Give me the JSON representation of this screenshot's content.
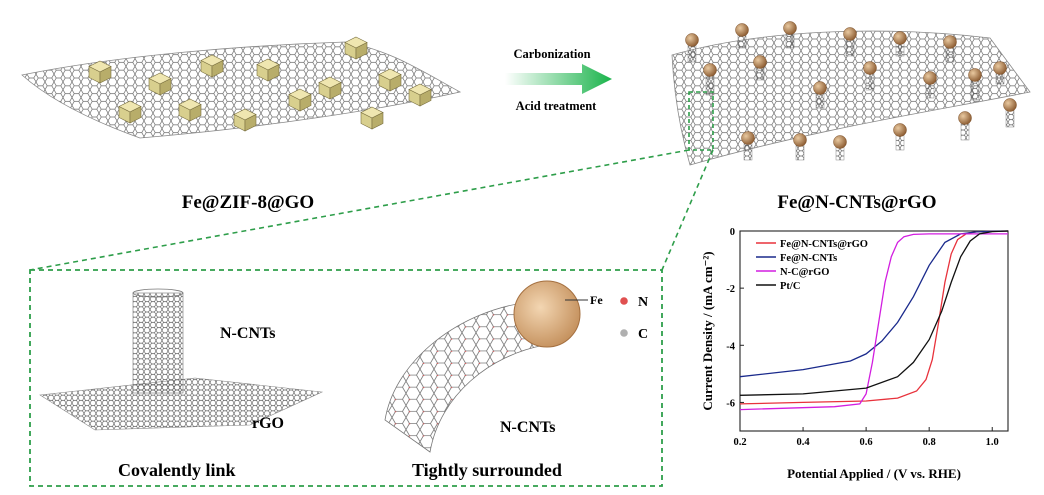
{
  "labels": {
    "precursor": "Fe@ZIF-8@GO",
    "product": "Fe@N-CNTs@rGO",
    "step1": "Carbonization",
    "step2": "Acid treatment",
    "cnt_vertical": "N-CNTs",
    "rgo": "rGO",
    "cnt_curved": "N-CNTs",
    "caption_left": "Covalently link",
    "caption_right": "Tightly surrounded",
    "fe": "Fe",
    "legend_n": "N",
    "legend_c": "C"
  },
  "colors": {
    "zif_cube": "#d8cf8e",
    "fe_ball": "#b8875a",
    "nitrogen": "#e05050",
    "carbon": "#b0b0b0",
    "arrow": "#19b34a",
    "dashed_box": "#2e9e4a"
  },
  "chart_data": {
    "type": "line",
    "xlabel": "Potential Applied / (V vs. RHE)",
    "ylabel": "Current Density / (mA cm⁻²)",
    "xlim": [
      0.2,
      1.05
    ],
    "ylim": [
      -7,
      0
    ],
    "xticks": [
      "0.2",
      "0.4",
      "0.6",
      "0.8",
      "1.0"
    ],
    "yticks": [
      "0",
      "-2",
      "-4",
      "-6"
    ],
    "legend_position": "top-left",
    "series": [
      {
        "name": "Fe@N-CNTs@rGO",
        "color": "#e8323c",
        "x": [
          0.2,
          0.4,
          0.6,
          0.7,
          0.76,
          0.79,
          0.81,
          0.83,
          0.85,
          0.87,
          0.89,
          0.92,
          0.95,
          1.0,
          1.05
        ],
        "y": [
          -6.05,
          -6.0,
          -5.95,
          -5.85,
          -5.6,
          -5.2,
          -4.5,
          -3.2,
          -1.8,
          -0.8,
          -0.3,
          -0.08,
          -0.03,
          -0.01,
          0
        ]
      },
      {
        "name": "Fe@N-CNTs",
        "color": "#1a2a8c",
        "x": [
          0.2,
          0.4,
          0.55,
          0.6,
          0.65,
          0.7,
          0.75,
          0.8,
          0.85,
          0.9,
          0.95,
          1.0,
          1.05
        ],
        "y": [
          -5.1,
          -4.85,
          -4.55,
          -4.3,
          -3.85,
          -3.2,
          -2.3,
          -1.2,
          -0.4,
          -0.1,
          -0.03,
          -0.01,
          0
        ]
      },
      {
        "name": "N-C@rGO",
        "color": "#d21ee0",
        "x": [
          0.2,
          0.5,
          0.58,
          0.6,
          0.62,
          0.64,
          0.66,
          0.68,
          0.7,
          0.72,
          0.75,
          0.8,
          0.9,
          1.05
        ],
        "y": [
          -6.25,
          -6.15,
          -6.05,
          -5.7,
          -4.6,
          -3.2,
          -1.8,
          -0.9,
          -0.4,
          -0.2,
          -0.12,
          -0.1,
          -0.1,
          -0.1
        ]
      },
      {
        "name": "Pt/C",
        "color": "#111111",
        "x": [
          0.2,
          0.4,
          0.6,
          0.7,
          0.75,
          0.8,
          0.84,
          0.87,
          0.9,
          0.93,
          0.96,
          1.0,
          1.05
        ],
        "y": [
          -5.75,
          -5.7,
          -5.5,
          -5.1,
          -4.6,
          -3.8,
          -2.8,
          -1.8,
          -0.9,
          -0.35,
          -0.1,
          -0.02,
          0
        ]
      }
    ]
  }
}
